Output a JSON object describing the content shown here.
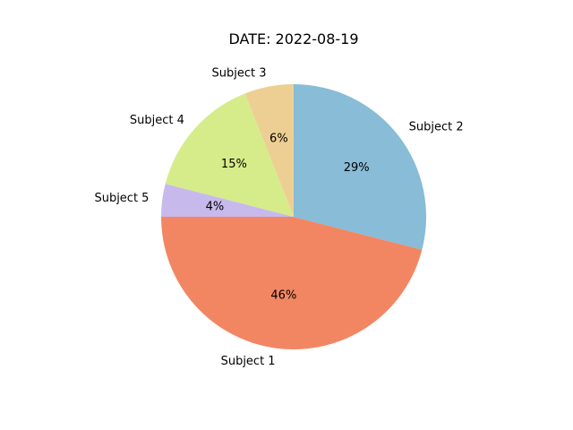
{
  "chart_data": {
    "type": "pie",
    "title": "DATE: 2022-08-19",
    "categories": [
      "Subject 1",
      "Subject 2",
      "Subject 3",
      "Subject 4",
      "Subject 5"
    ],
    "values": [
      46,
      29,
      6,
      15,
      4
    ],
    "percent_labels": [
      "46%",
      "29%",
      "6%",
      "15%",
      "4%"
    ],
    "colors": [
      "#f28663",
      "#88bcd7",
      "#edcf93",
      "#d6ec8a",
      "#c8b9ec"
    ],
    "start_angle_deg": 180,
    "direction": "counterclockwise"
  }
}
